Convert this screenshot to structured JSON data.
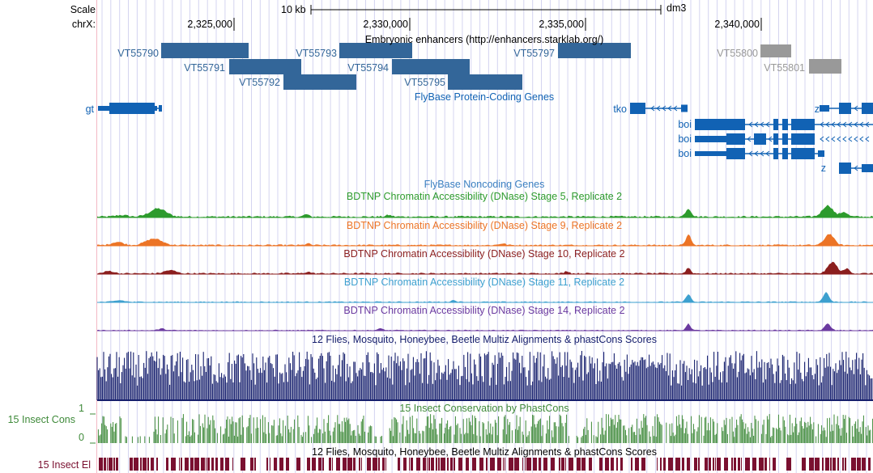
{
  "header": {
    "scale_label": "Scale",
    "chrom_label": "chrX:",
    "scale_bar_text": "10 kb",
    "assembly": "dm3",
    "positions": [
      "2,325,000",
      "2,330,000",
      "2,335,000",
      "2,340,000"
    ]
  },
  "tracks": {
    "enhancers": {
      "title": "Embryonic enhancers (http://enhancers.starklab.org/)",
      "color": "#336699",
      "gray": "#999999",
      "items": [
        "VT55790",
        "VT55791",
        "VT55792",
        "VT55793",
        "VT55794",
        "VT55795",
        "VT55797",
        "VT55800",
        "VT55801"
      ]
    },
    "genes": {
      "title": "FlyBase Protein-Coding Genes",
      "color": "#1162b4",
      "names": [
        "gt",
        "tko",
        "z",
        "boi",
        "boi",
        "boi",
        "z"
      ]
    },
    "noncoding": {
      "title": "FlyBase Noncoding Genes",
      "color": "#3a7fc1"
    },
    "dnase": [
      {
        "title": "BDTNP Chromatin Accessibility (DNase) Stage 5, Replicate 2",
        "color": "#2d9b2d"
      },
      {
        "title": "BDTNP Chromatin Accessibility (DNase) Stage 9, Replicate 2",
        "color": "#ec7426"
      },
      {
        "title": "BDTNP Chromatin Accessibility (DNase) Stage 10, Replicate 2",
        "color": "#8b1e1e"
      },
      {
        "title": "BDTNP Chromatin Accessibility (DNase) Stage 11, Replicate 2",
        "color": "#3da0cf"
      },
      {
        "title": "BDTNP Chromatin Accessibility (DNase) Stage 14, Replicate 2",
        "color": "#6b3aa0"
      }
    ],
    "multiz": {
      "title": "12 Flies, Mosquito, Honeybee, Beetle Multiz Alignments & phastCons Scores",
      "color": "#151e6c"
    },
    "cons": {
      "title": "15 Insect Conservation by PhastCons",
      "side_label": "15 Insect Cons",
      "axis_max": "1",
      "axis_min": "0",
      "color": "#3f8a3a"
    },
    "elements": {
      "title": "12 Flies, Mosquito, Honeybee, Beetle Multiz Alignments & phastCons Scores",
      "side_label": "15 Insect El",
      "color": "#7a1030"
    }
  }
}
